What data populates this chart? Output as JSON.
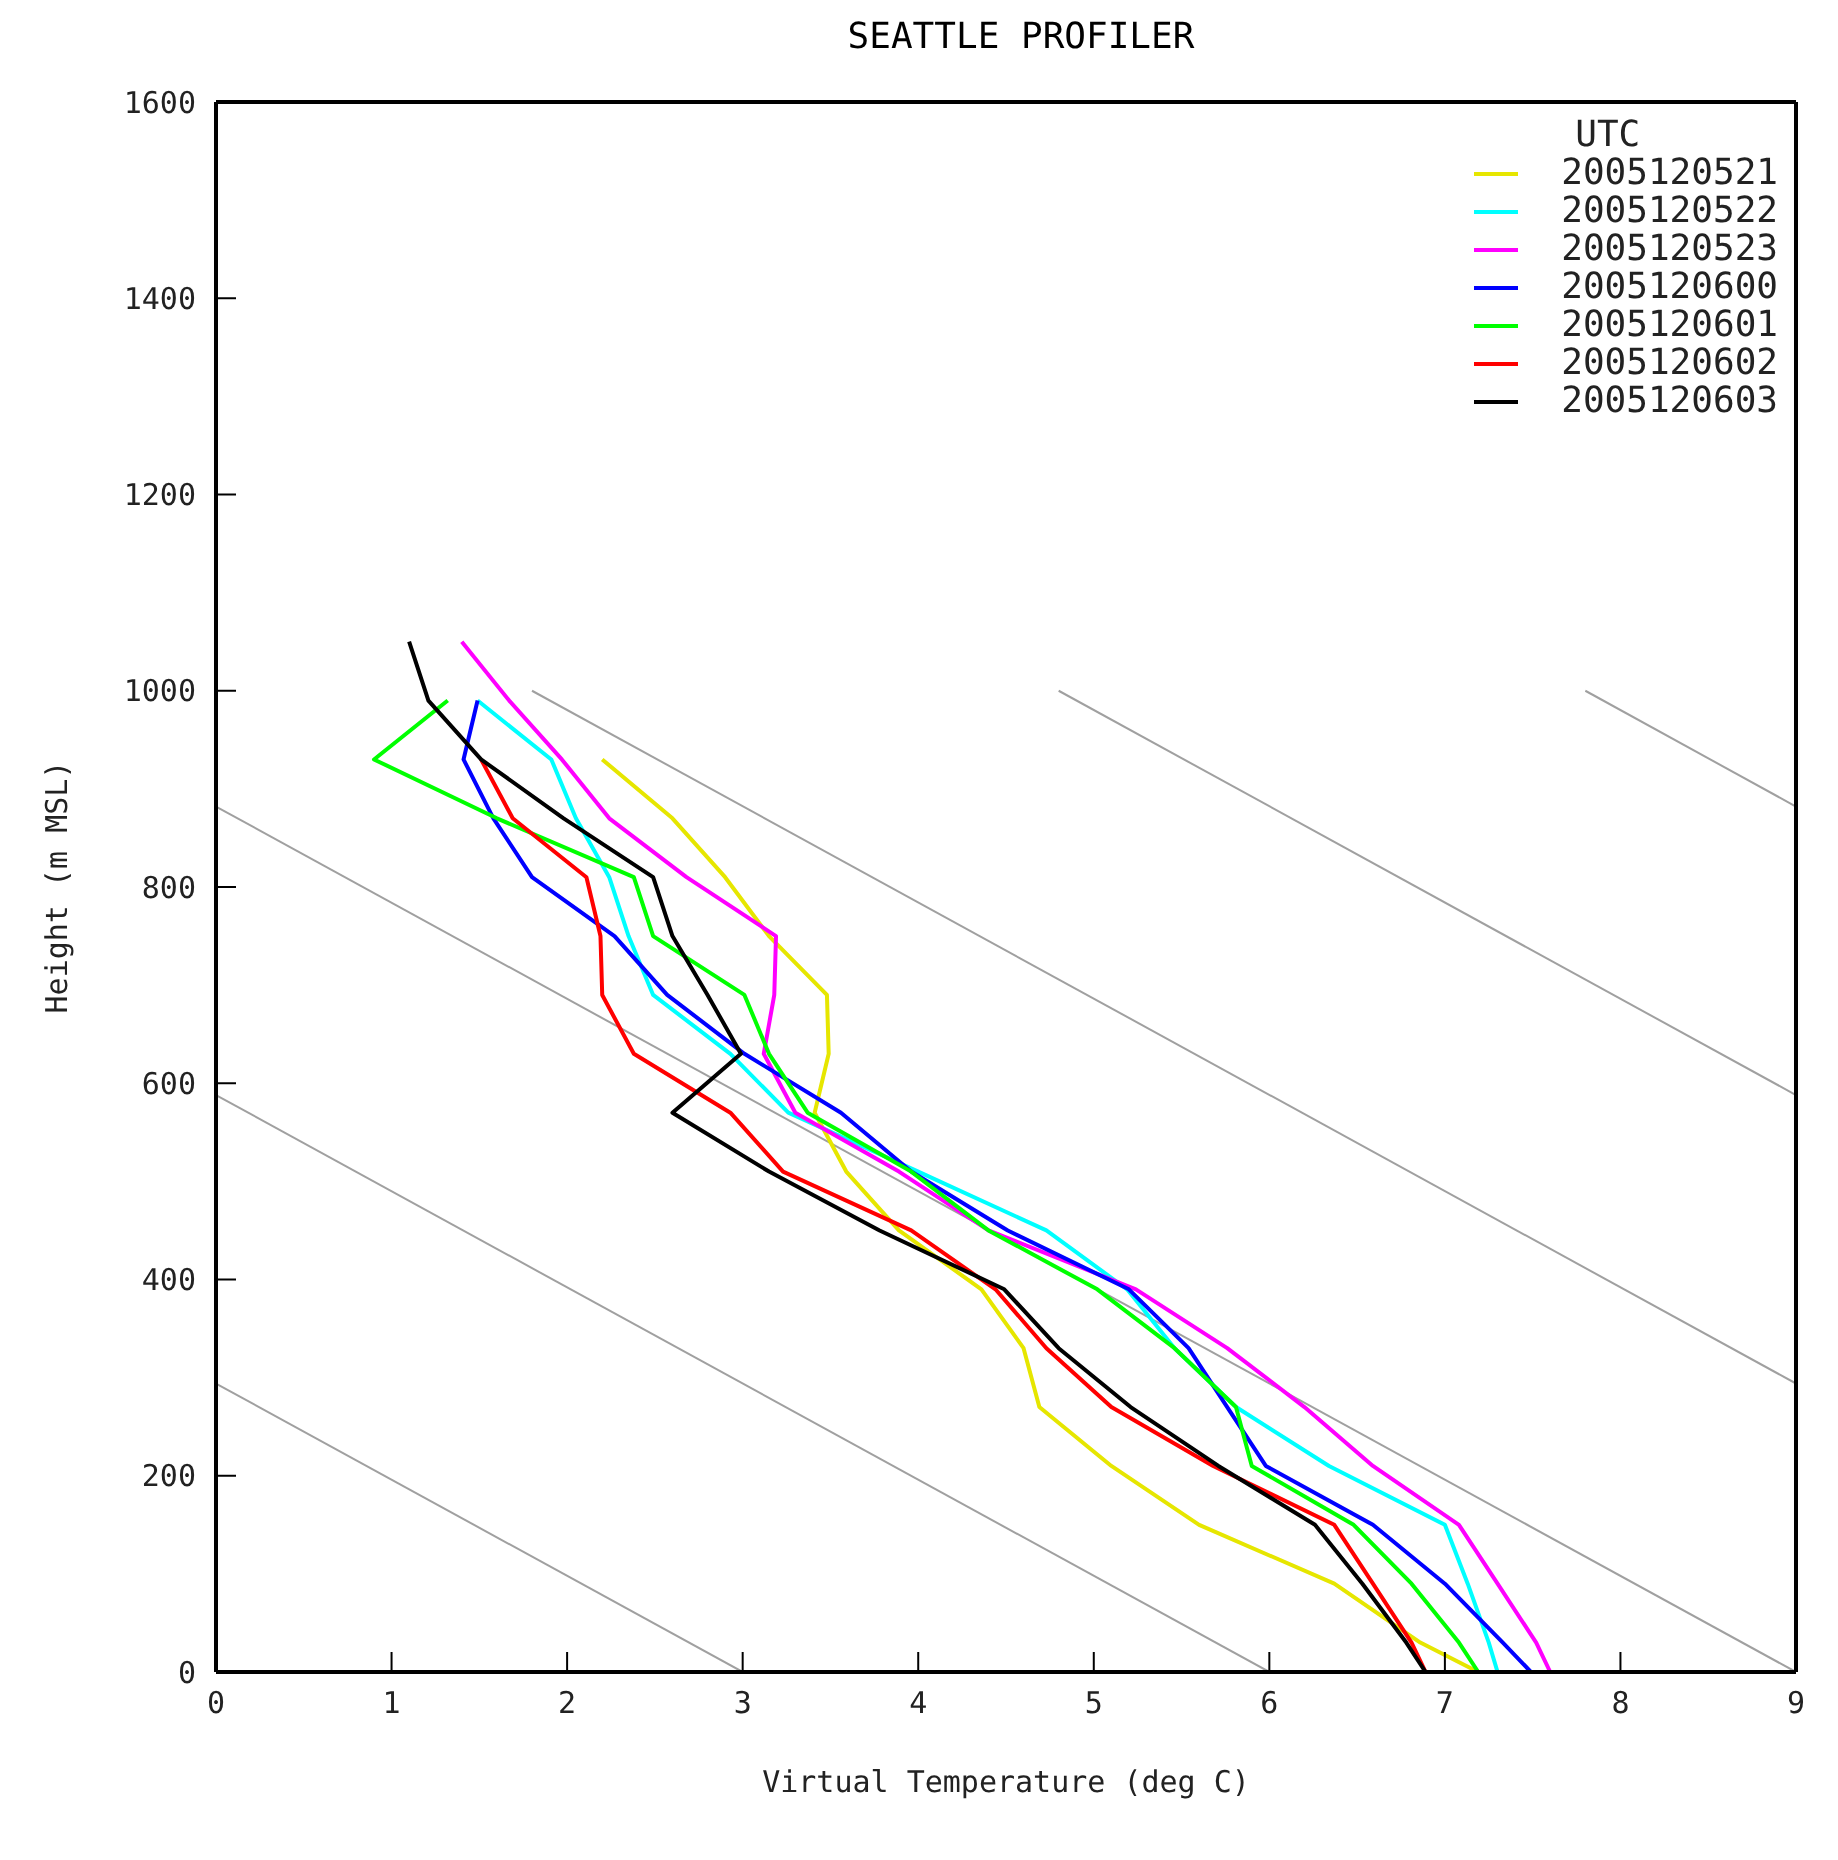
{
  "chart_data": {
    "type": "line",
    "title": "SEATTLE PROFILER",
    "xlabel": "Virtual Temperature (deg C)",
    "ylabel": "Height (m MSL)",
    "legend_title": "UTC",
    "legend": "top right",
    "marker": "none",
    "xlim": [
      0,
      9
    ],
    "xticks": [
      0,
      1,
      2,
      3,
      4,
      5,
      6,
      7,
      8,
      9
    ],
    "ylim": [
      0,
      1600
    ],
    "yticks": [
      0,
      200,
      400,
      600,
      800,
      1000,
      1200,
      1400,
      1600
    ],
    "series": [
      {
        "color": "#a0a0a0",
        "x": [
          0,
          3
        ],
        "values": [
          294,
          0
        ]
      },
      {
        "color": "#a0a0a0",
        "x": [
          0,
          6
        ],
        "values": [
          588,
          0
        ]
      },
      {
        "color": "#a0a0a0",
        "x": [
          0,
          9
        ],
        "values": [
          882,
          0
        ]
      },
      {
        "color": "#a0a0a0",
        "x": [
          1.8,
          9
        ],
        "values": [
          1000,
          294
        ]
      },
      {
        "color": "#a0a0a0",
        "x": [
          4.8,
          9
        ],
        "values": [
          1000,
          588
        ]
      },
      {
        "color": "#a0a0a0",
        "x": [
          7.8,
          9
        ],
        "values": [
          1000,
          882
        ]
      },
      {
        "name": "2005120521",
        "color": "#e6e600",
        "x": [
          2.2,
          2.6,
          2.9,
          3.15,
          3.48,
          3.49,
          3.41,
          3.59,
          3.89,
          4.36,
          4.6,
          4.69,
          5.1,
          5.6,
          6.37,
          6.86,
          7.19
        ],
        "values": [
          930,
          870,
          810,
          750,
          690,
          630,
          570,
          510,
          450,
          390,
          330,
          270,
          210,
          150,
          90,
          30,
          0
        ]
      },
      {
        "name": "2005120522",
        "color": "#00ffff",
        "x": [
          1.49,
          1.91,
          2.05,
          2.24,
          2.35,
          2.49,
          2.93,
          3.26,
          4.0,
          4.73,
          5.19,
          5.46,
          5.81,
          6.34,
          7.0,
          7.13,
          7.25,
          7.3
        ],
        "values": [
          990,
          930,
          870,
          810,
          750,
          690,
          630,
          570,
          510,
          450,
          390,
          330,
          270,
          210,
          150,
          90,
          30,
          0
        ]
      },
      {
        "name": "2005120523",
        "color": "#ff00ff",
        "x": [
          1.4,
          1.67,
          1.97,
          2.24,
          2.68,
          3.19,
          3.18,
          3.12,
          3.3,
          3.89,
          4.4,
          5.24,
          5.76,
          6.2,
          6.59,
          7.08,
          7.3,
          7.52,
          7.6
        ],
        "values": [
          1050,
          990,
          930,
          870,
          810,
          750,
          690,
          630,
          570,
          510,
          450,
          390,
          330,
          270,
          210,
          150,
          90,
          30,
          0
        ]
      },
      {
        "name": "2005120600",
        "color": "#0000ff",
        "x": [
          1.49,
          1.41,
          1.58,
          1.8,
          2.27,
          2.57,
          3.01,
          3.56,
          3.96,
          4.51,
          5.2,
          5.54,
          5.76,
          5.98,
          6.59,
          7.0,
          7.33,
          7.49
        ],
        "values": [
          990,
          930,
          870,
          810,
          750,
          690,
          630,
          570,
          510,
          450,
          390,
          330,
          270,
          210,
          150,
          90,
          30,
          0
        ]
      },
      {
        "name": "2005120601",
        "color": "#00ff00",
        "x": [
          1.32,
          0.9,
          1.6,
          2.38,
          2.49,
          3.01,
          3.15,
          3.37,
          3.96,
          4.4,
          5.02,
          5.46,
          5.81,
          5.9,
          6.48,
          6.81,
          7.08,
          7.19
        ],
        "values": [
          990,
          930,
          870,
          810,
          750,
          690,
          630,
          570,
          510,
          450,
          390,
          330,
          270,
          210,
          150,
          90,
          30,
          0
        ]
      },
      {
        "name": "2005120602",
        "color": "#ff0000",
        "x": [
          1.51,
          1.69,
          2.11,
          2.19,
          2.2,
          2.38,
          2.93,
          3.23,
          3.96,
          4.44,
          4.73,
          5.1,
          5.68,
          6.37,
          6.59,
          6.81,
          6.89
        ],
        "values": [
          930,
          870,
          810,
          750,
          690,
          630,
          570,
          510,
          450,
          390,
          330,
          270,
          210,
          150,
          90,
          30,
          0
        ]
      },
      {
        "name": "2005120603",
        "color": "#000000",
        "x": [
          1.1,
          1.21,
          1.51,
          1.98,
          2.49,
          2.6,
          2.8,
          2.99,
          2.6,
          3.15,
          3.78,
          4.49,
          4.8,
          5.21,
          5.71,
          6.26,
          6.53,
          6.78,
          6.89
        ],
        "values": [
          1050,
          990,
          930,
          870,
          810,
          750,
          690,
          630,
          570,
          510,
          450,
          390,
          330,
          270,
          210,
          150,
          90,
          30,
          0
        ]
      }
    ]
  }
}
